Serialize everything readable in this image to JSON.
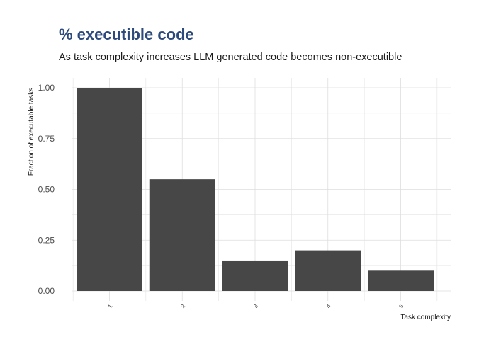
{
  "chart_data": {
    "type": "bar",
    "title": "% executible code",
    "subtitle": "As task complexity increases LLM generated code becomes non-executible",
    "xlabel": "Task complexity",
    "ylabel": "Fraction of executable tasks",
    "categories": [
      "1",
      "2",
      "3",
      "4",
      "5"
    ],
    "values": [
      1.0,
      0.55,
      0.15,
      0.2,
      0.1
    ],
    "ylim": [
      0,
      1.0
    ],
    "yticks": [
      "0.00",
      "0.25",
      "0.50",
      "0.75",
      "1.00"
    ],
    "grid": true,
    "legend": "none",
    "colors": {
      "bar": "#474747",
      "title": "#2c4a7c",
      "grid": "#dedede"
    }
  }
}
